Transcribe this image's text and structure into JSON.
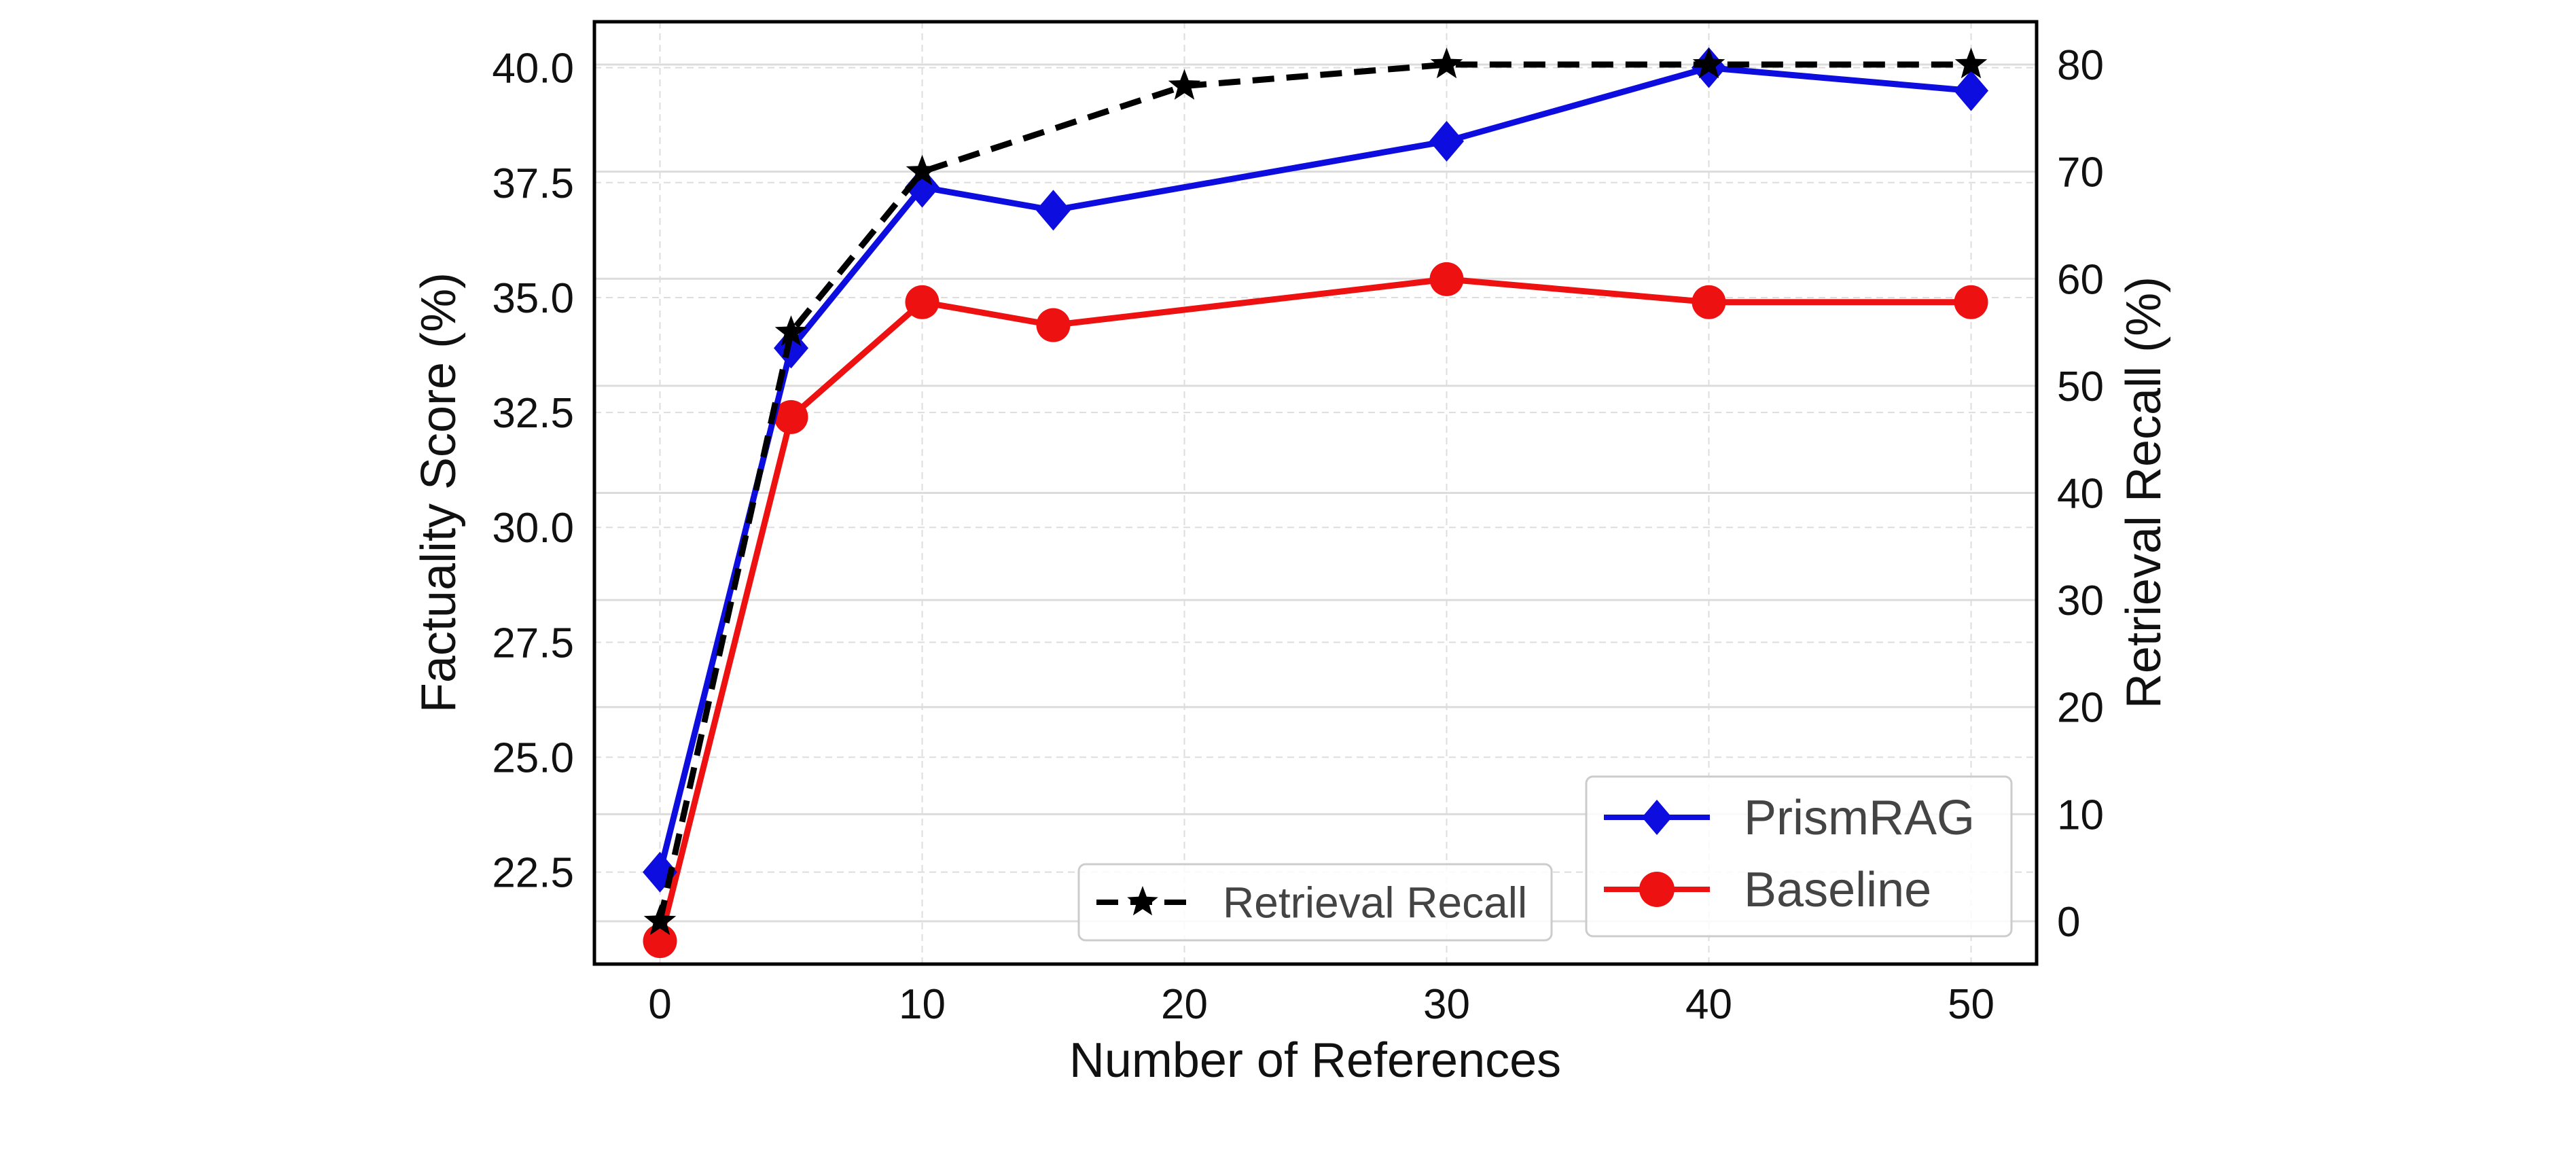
{
  "chart_data": {
    "type": "line",
    "title": "",
    "xlabel": "Number of References",
    "ylabel": "Factuality Score (%)",
    "y2label": "Retrieval Recall (%)",
    "x": [
      0,
      5,
      10,
      15,
      30,
      40,
      50
    ],
    "xticks": [
      "0",
      "10",
      "20",
      "30",
      "40",
      "50"
    ],
    "yticks": [
      "22.5",
      "25.0",
      "27.5",
      "30.0",
      "32.5",
      "35.0",
      "37.5",
      "40.0"
    ],
    "y2ticks": [
      "0",
      "10",
      "20",
      "30",
      "40",
      "50",
      "60",
      "70",
      "80"
    ],
    "xlim": [
      -2.5,
      52.5
    ],
    "ylim": [
      20.5,
      41
    ],
    "y2lim": [
      -4,
      84
    ],
    "grid": true,
    "series": [
      {
        "name": "PrismRAG",
        "axis": "left",
        "x": [
          0,
          5,
          10,
          15,
          30,
          40,
          50
        ],
        "values": [
          22.5,
          33.9,
          37.4,
          36.9,
          38.4,
          40.0,
          39.5
        ],
        "color": "#0d0ddf",
        "marker": "diamond",
        "style": "solid"
      },
      {
        "name": "Baseline",
        "axis": "left",
        "x": [
          0,
          5,
          10,
          15,
          30,
          40,
          50
        ],
        "values": [
          21.0,
          32.4,
          34.9,
          34.4,
          35.4,
          34.9,
          34.9
        ],
        "color": "#ee1111",
        "marker": "circle",
        "style": "solid"
      },
      {
        "name": "Retrieval Recall",
        "axis": "right",
        "x": [
          0,
          5,
          10,
          20,
          30,
          40,
          50
        ],
        "values": [
          0,
          55,
          70,
          78,
          80,
          80,
          80
        ],
        "color": "#000000",
        "marker": "star",
        "style": "dashed"
      }
    ],
    "legends": [
      {
        "placement": "bottom-center",
        "entries": [
          "Retrieval Recall"
        ]
      },
      {
        "placement": "bottom-right",
        "entries": [
          "PrismRAG",
          "Baseline"
        ]
      }
    ]
  }
}
